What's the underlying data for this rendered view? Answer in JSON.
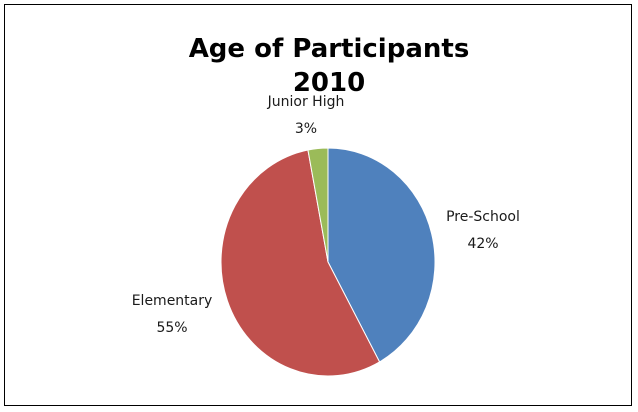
{
  "chart_data": {
    "type": "pie",
    "title": "Age of Participants",
    "subtitle": "2010",
    "categories": [
      "Pre-School",
      "Elementary",
      "Junior High"
    ],
    "values": [
      42,
      55,
      3
    ],
    "value_labels": [
      "42%",
      "55%",
      "3%"
    ],
    "colors": [
      "#4f81bd",
      "#c0504d",
      "#9bbb59"
    ],
    "start_angle_deg": 0,
    "direction": "clockwise",
    "legend": "none",
    "data_labels": "outside"
  }
}
